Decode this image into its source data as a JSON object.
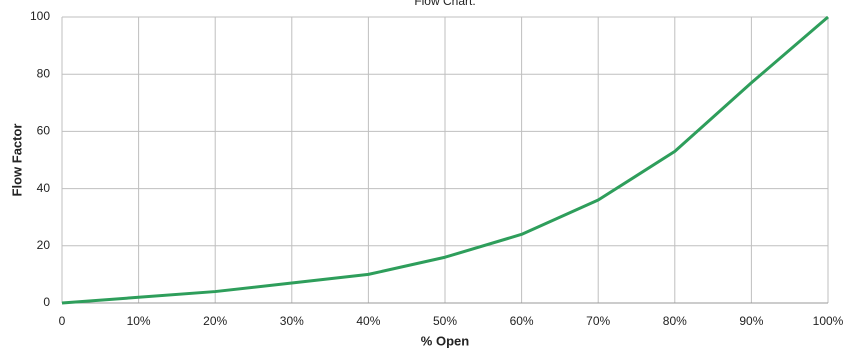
{
  "chart_data": {
    "type": "line",
    "title": "Flow Chart:",
    "x_label": "% Open",
    "y_label": "Flow Factor",
    "x": [
      0,
      10,
      20,
      30,
      40,
      50,
      60,
      70,
      80,
      90,
      100
    ],
    "series": [
      {
        "name": "Flow Factor",
        "color": "#2e9e5b",
        "values": [
          0,
          2,
          4,
          7,
          10,
          16,
          24,
          36,
          53,
          77,
          100
        ]
      }
    ],
    "xlim": [
      0,
      100
    ],
    "xticks": [
      0,
      {
        "value": 10,
        "label": "10%"
      },
      {
        "value": 20,
        "label": "20%"
      },
      {
        "value": 30,
        "label": "30%"
      },
      {
        "value": 40,
        "label": "40%"
      },
      {
        "value": 50,
        "label": "50%"
      },
      {
        "value": 60,
        "label": "60%"
      },
      {
        "value": 70,
        "label": "70%"
      },
      {
        "value": 80,
        "label": "80%"
      },
      {
        "value": 90,
        "label": "90%"
      },
      {
        "value": 100,
        "label": "100%"
      }
    ],
    "ylim": [
      0,
      100
    ],
    "yticks": [
      0,
      20,
      40,
      60,
      80,
      100
    ],
    "grid": true
  }
}
